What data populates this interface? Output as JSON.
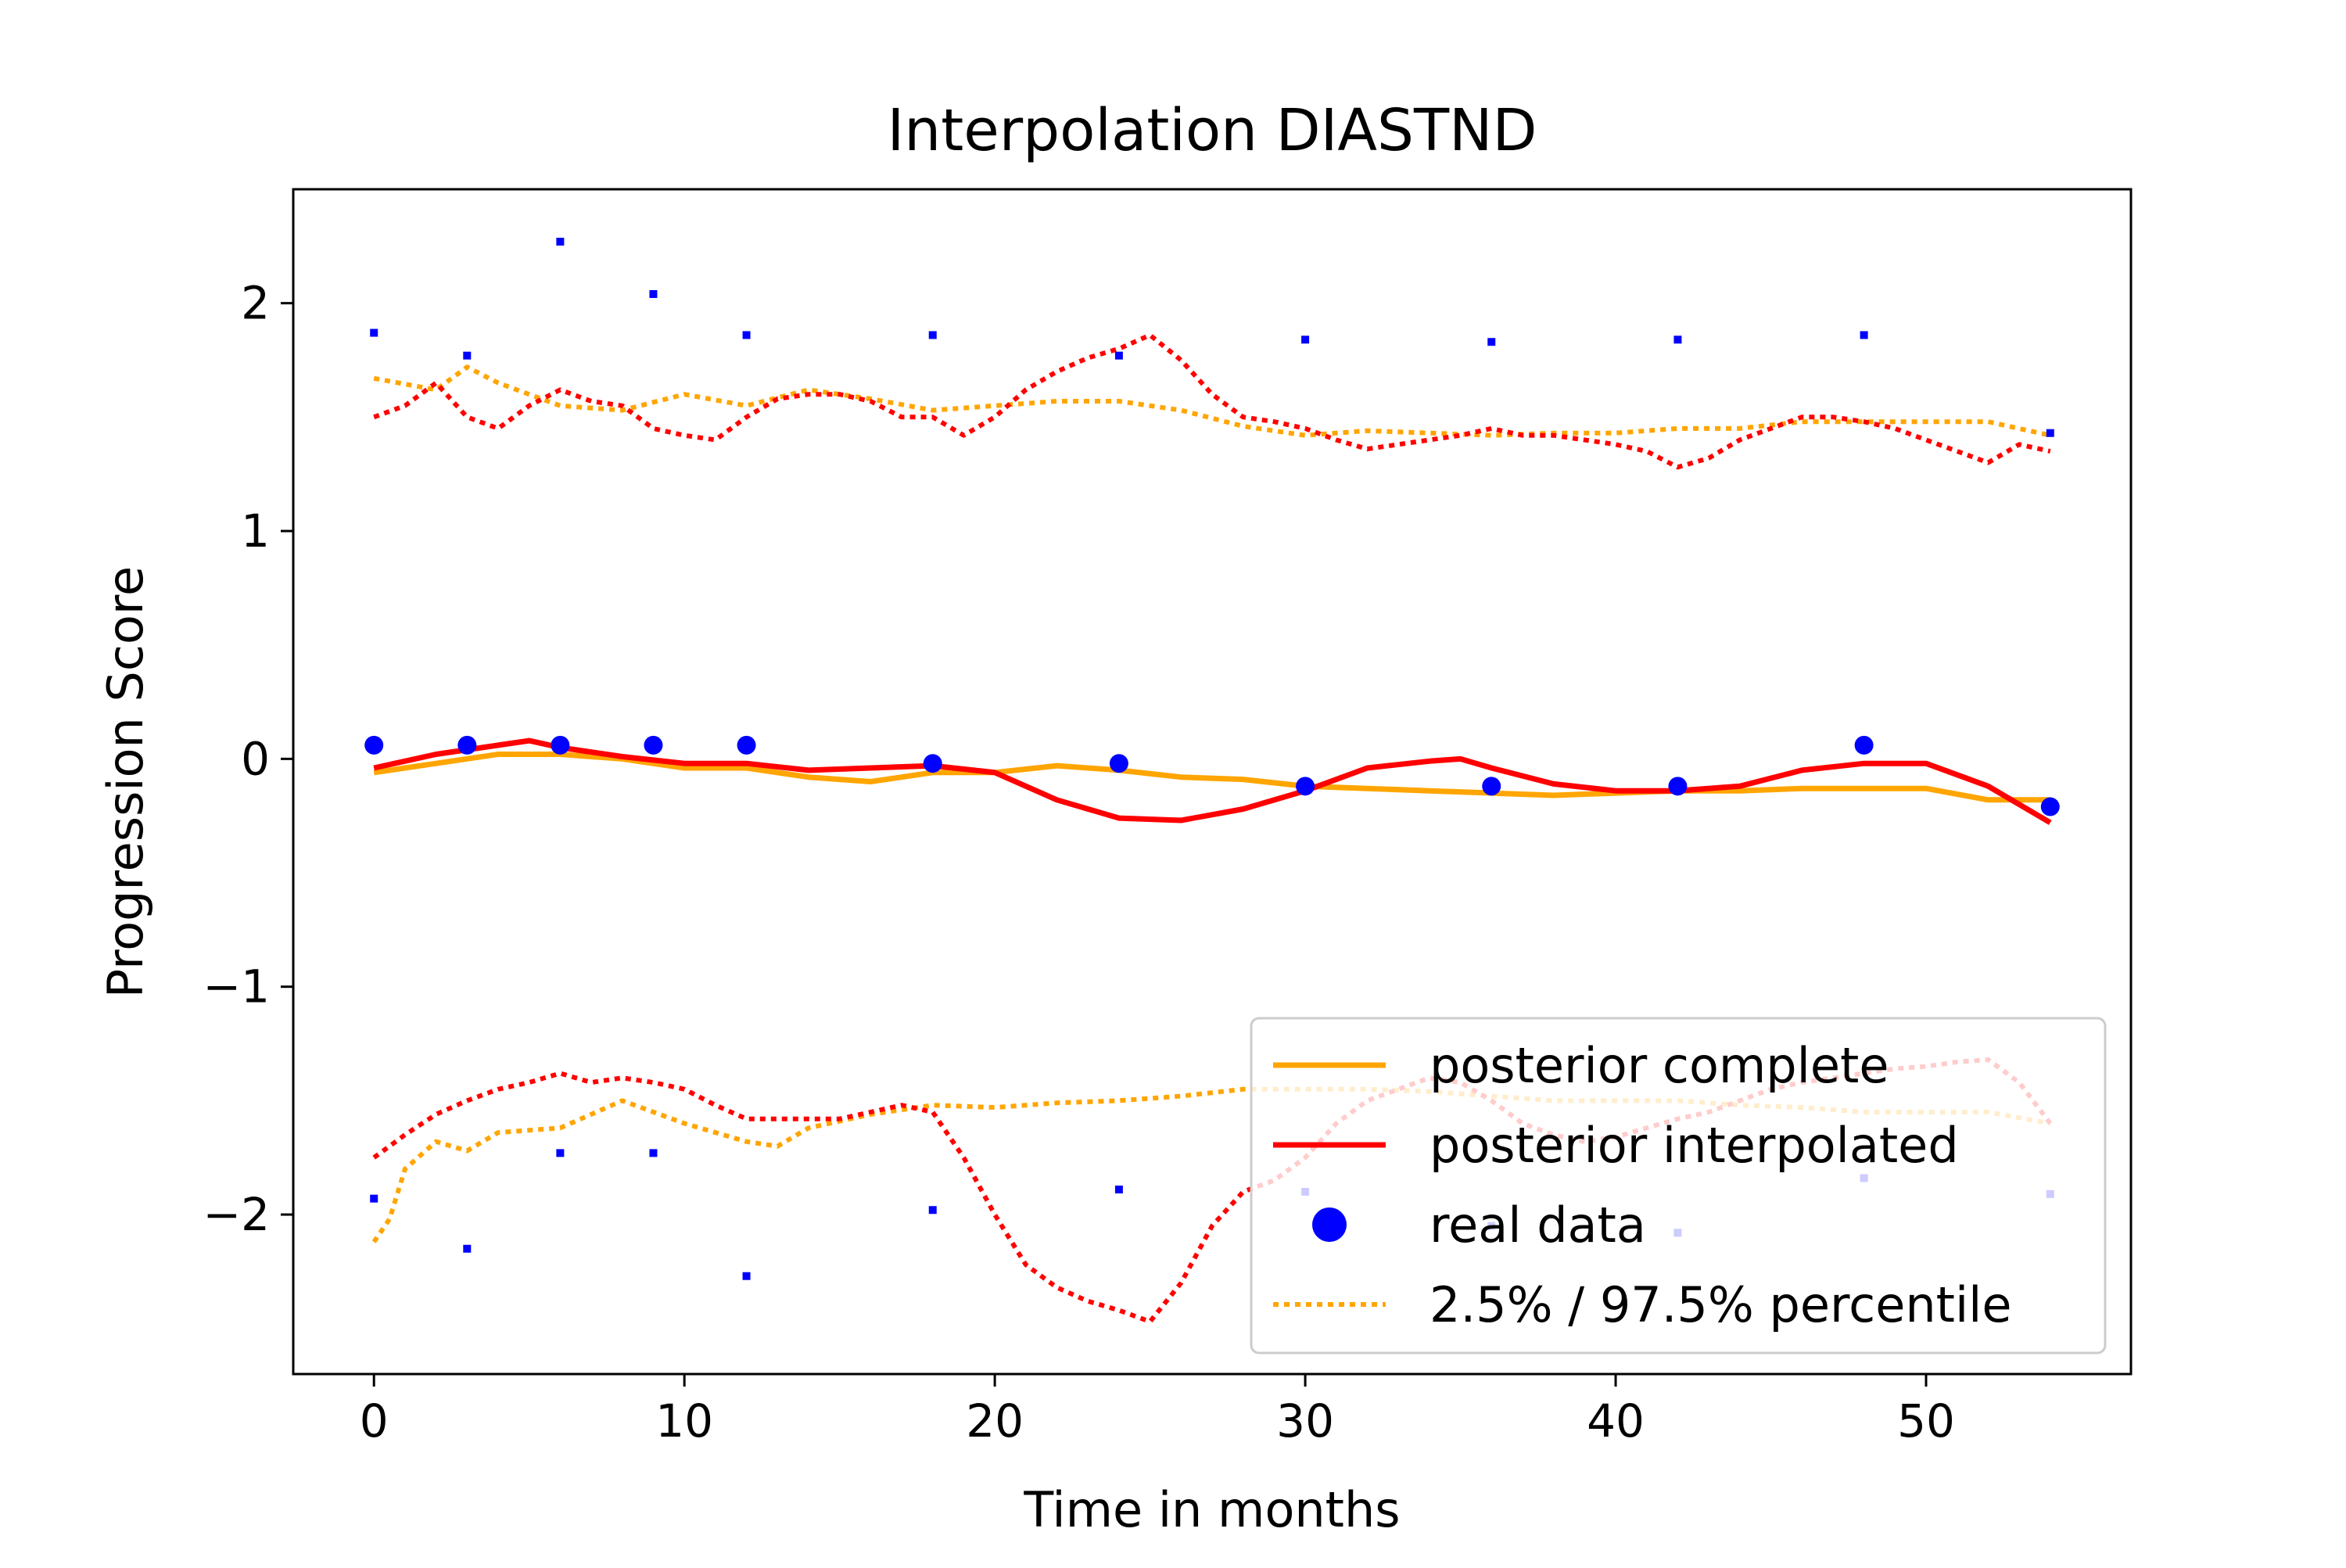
{
  "chart_data": {
    "type": "line",
    "title": "Interpolation DIASTND",
    "xlabel": "Time in months",
    "ylabel": "Progression Score",
    "xlim": [
      -2.6,
      56.6
    ],
    "ylim": [
      -2.7,
      2.5
    ],
    "x_ticks": [
      0,
      10,
      20,
      30,
      40,
      50
    ],
    "y_ticks": [
      -2,
      -1,
      0,
      1,
      2
    ],
    "x_tick_labels": [
      "0",
      "10",
      "20",
      "30",
      "40",
      "50"
    ],
    "y_tick_labels": [
      "−2",
      "−1",
      "0",
      "1",
      "2"
    ],
    "grid": false,
    "legend_position": "bottom-right",
    "colors": {
      "posterior_complete": "#ffa500",
      "posterior_interpolated": "#ff0000",
      "real_data": "#0000ff"
    },
    "legend": [
      {
        "label": "posterior complete",
        "style": "solid",
        "color": "#ffa500"
      },
      {
        "label": "posterior interpolated",
        "style": "solid",
        "color": "#ff0000"
      },
      {
        "label": "real data",
        "style": "marker",
        "color": "#0000ff"
      },
      {
        "label": "2.5% / 97.5% percentile",
        "style": "dotted",
        "color": "#ffa500"
      }
    ],
    "series": [
      {
        "name": "posterior complete",
        "color": "#ffa500",
        "style": "solid",
        "x": [
          0,
          2,
          4,
          6,
          8,
          10,
          12,
          14,
          16,
          18,
          20,
          22,
          24,
          26,
          28,
          30,
          32,
          34,
          36,
          38,
          40,
          42,
          44,
          46,
          48,
          50,
          52,
          54
        ],
        "y": [
          -0.06,
          -0.02,
          0.02,
          0.02,
          0.0,
          -0.04,
          -0.04,
          -0.08,
          -0.1,
          -0.06,
          -0.06,
          -0.03,
          -0.05,
          -0.08,
          -0.09,
          -0.12,
          -0.13,
          -0.14,
          -0.15,
          -0.16,
          -0.15,
          -0.14,
          -0.14,
          -0.13,
          -0.13,
          -0.13,
          -0.18,
          -0.18
        ]
      },
      {
        "name": "posterior interpolated",
        "color": "#ff0000",
        "style": "solid",
        "x": [
          0,
          2,
          4,
          5,
          6,
          8,
          10,
          12,
          14,
          16,
          18,
          20,
          22,
          24,
          26,
          28,
          30,
          32,
          34,
          35,
          36,
          38,
          40,
          42,
          44,
          46,
          48,
          50,
          52,
          54
        ],
        "y": [
          -0.04,
          0.02,
          0.06,
          0.08,
          0.05,
          0.01,
          -0.02,
          -0.02,
          -0.05,
          -0.04,
          -0.03,
          -0.06,
          -0.18,
          -0.26,
          -0.27,
          -0.22,
          -0.14,
          -0.04,
          -0.01,
          0.0,
          -0.04,
          -0.11,
          -0.14,
          -0.14,
          -0.12,
          -0.05,
          -0.02,
          -0.02,
          -0.12,
          -0.28
        ]
      },
      {
        "name": "real data",
        "color": "#0000ff",
        "style": "marker",
        "x": [
          0,
          3,
          6,
          9,
          12,
          18,
          24,
          30,
          36,
          42,
          48,
          54
        ],
        "y": [
          0.06,
          0.06,
          0.06,
          0.06,
          0.06,
          -0.02,
          -0.02,
          -0.12,
          -0.12,
          -0.12,
          0.06,
          -0.21
        ]
      },
      {
        "name": "2.5% / 97.5% percentile",
        "color": "#ffa500",
        "style": "dotted",
        "x": [
          0,
          2,
          3,
          4,
          6,
          8,
          10,
          12,
          14,
          16,
          18,
          20,
          22,
          24,
          26,
          28,
          30,
          32,
          34,
          36,
          38,
          40,
          42,
          44,
          46,
          48,
          50,
          52,
          54
        ],
        "y": [
          1.67,
          1.62,
          1.72,
          1.65,
          1.55,
          1.53,
          1.6,
          1.55,
          1.62,
          1.58,
          1.53,
          1.55,
          1.57,
          1.57,
          1.53,
          1.46,
          1.42,
          1.44,
          1.43,
          1.42,
          1.43,
          1.43,
          1.45,
          1.45,
          1.48,
          1.48,
          1.48,
          1.48,
          1.42
        ]
      },
      {
        "name": "",
        "color": "#ffa500",
        "style": "dotted",
        "x": [
          0,
          0.5,
          1,
          2,
          3,
          4,
          6,
          8,
          10,
          12,
          13,
          14,
          16,
          18,
          20,
          22,
          24,
          26,
          28,
          30,
          32,
          34,
          36,
          38,
          40,
          42,
          44,
          46,
          48,
          50,
          52,
          54
        ],
        "y": [
          -2.12,
          -2.02,
          -1.8,
          -1.68,
          -1.72,
          -1.64,
          -1.62,
          -1.5,
          -1.6,
          -1.68,
          -1.7,
          -1.62,
          -1.56,
          -1.52,
          -1.53,
          -1.51,
          -1.5,
          -1.48,
          -1.45,
          -1.45,
          -1.45,
          -1.46,
          -1.48,
          -1.5,
          -1.5,
          -1.5,
          -1.52,
          -1.53,
          -1.55,
          -1.55,
          -1.55,
          -1.6
        ]
      },
      {
        "name": "",
        "color": "#ff0000",
        "style": "dotted",
        "x": [
          0,
          1,
          2,
          3,
          4,
          5,
          6,
          7,
          8,
          9,
          10,
          11,
          12,
          13,
          14,
          15,
          16,
          17,
          18,
          19,
          20,
          21,
          22,
          23,
          24,
          25,
          26,
          27,
          28,
          29,
          30,
          31,
          32,
          33,
          34,
          35,
          36,
          37,
          38,
          39,
          40,
          41,
          42,
          43,
          44,
          45,
          46,
          47,
          48,
          49,
          50,
          51,
          52,
          53,
          54
        ],
        "y": [
          1.5,
          1.55,
          1.65,
          1.5,
          1.45,
          1.55,
          1.62,
          1.57,
          1.55,
          1.45,
          1.42,
          1.4,
          1.5,
          1.58,
          1.6,
          1.6,
          1.57,
          1.5,
          1.5,
          1.42,
          1.5,
          1.62,
          1.7,
          1.76,
          1.8,
          1.86,
          1.75,
          1.6,
          1.5,
          1.48,
          1.45,
          1.4,
          1.36,
          1.38,
          1.4,
          1.42,
          1.45,
          1.42,
          1.42,
          1.4,
          1.38,
          1.35,
          1.28,
          1.32,
          1.4,
          1.45,
          1.5,
          1.5,
          1.48,
          1.45,
          1.4,
          1.35,
          1.3,
          1.38,
          1.35
        ]
      },
      {
        "name": "",
        "color": "#ff0000",
        "style": "dotted",
        "x": [
          0,
          1,
          2,
          3,
          4,
          5,
          6,
          7,
          8,
          9,
          10,
          11,
          12,
          13,
          14,
          15,
          16,
          17,
          18,
          19,
          20,
          21,
          22,
          23,
          24,
          25,
          26,
          27,
          28,
          29,
          30,
          31,
          32,
          33,
          34,
          35,
          36,
          37,
          38,
          39,
          40,
          41,
          42,
          43,
          44,
          45,
          46,
          47,
          48,
          49,
          50,
          51,
          52,
          53,
          54
        ],
        "y": [
          -1.75,
          -1.65,
          -1.56,
          -1.5,
          -1.45,
          -1.42,
          -1.38,
          -1.42,
          -1.4,
          -1.42,
          -1.45,
          -1.52,
          -1.58,
          -1.58,
          -1.58,
          -1.58,
          -1.55,
          -1.52,
          -1.55,
          -1.75,
          -2.0,
          -2.22,
          -2.32,
          -2.38,
          -2.42,
          -2.47,
          -2.3,
          -2.05,
          -1.9,
          -1.85,
          -1.75,
          -1.6,
          -1.5,
          -1.45,
          -1.4,
          -1.42,
          -1.5,
          -1.6,
          -1.65,
          -1.68,
          -1.66,
          -1.62,
          -1.58,
          -1.55,
          -1.5,
          -1.45,
          -1.42,
          -1.4,
          -1.38,
          -1.36,
          -1.35,
          -1.33,
          -1.32,
          -1.42,
          -1.6
        ]
      },
      {
        "name": "",
        "color": "#0000ff",
        "style": "small-marker",
        "x": [
          0,
          3,
          6,
          9,
          12,
          18,
          24,
          30,
          36,
          42,
          48,
          54
        ],
        "y": [
          1.87,
          1.77,
          2.27,
          2.04,
          1.86,
          1.86,
          1.77,
          1.84,
          1.83,
          1.84,
          1.86,
          1.43
        ]
      },
      {
        "name": "",
        "color": "#0000ff",
        "style": "small-marker",
        "x": [
          0,
          3,
          6,
          9,
          12,
          18,
          24,
          30,
          36,
          42,
          48,
          54
        ],
        "y": [
          -1.93,
          -2.15,
          -1.73,
          -1.73,
          -2.27,
          -1.98,
          -1.89,
          -1.9,
          -2.05,
          -2.08,
          -1.84,
          -1.91
        ]
      }
    ]
  }
}
